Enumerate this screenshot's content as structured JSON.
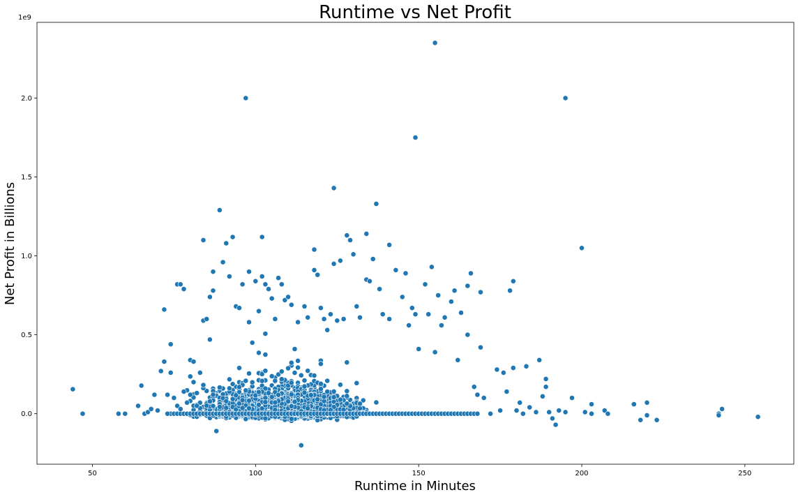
{
  "chart_data": {
    "type": "scatter",
    "title": "Runtime vs Net Profit",
    "xlabel": "Runtime in Minutes",
    "ylabel": "Net Profit in Billions",
    "y_offset_label": "1e9",
    "xlim": [
      33,
      265
    ],
    "ylim": [
      -0.32,
      2.48
    ],
    "xticks": [
      50,
      100,
      150,
      200,
      250
    ],
    "xtick_labels": [
      "50",
      "100",
      "150",
      "200",
      "250"
    ],
    "yticks": [
      0.0,
      0.5,
      1.0,
      1.5,
      2.0
    ],
    "ytick_labels": [
      "0.0",
      "0.5",
      "1.0",
      "1.5",
      "2.0"
    ],
    "grid": false,
    "color": "#1f77b4",
    "points": [
      [
        44,
        0.155
      ],
      [
        47,
        0.0
      ],
      [
        58,
        0.0
      ],
      [
        60,
        0.0
      ],
      [
        64,
        0.05
      ],
      [
        65,
        0.178
      ],
      [
        66,
        0.0
      ],
      [
        67,
        0.01
      ],
      [
        68,
        0.03
      ],
      [
        69,
        0.12
      ],
      [
        70,
        0.02
      ],
      [
        71,
        0.27
      ],
      [
        72,
        0.66
      ],
      [
        72,
        0.33
      ],
      [
        73,
        0.0
      ],
      [
        73,
        0.12
      ],
      [
        74,
        0.26
      ],
      [
        74,
        0.44
      ],
      [
        75,
        0.1
      ],
      [
        76,
        0.82
      ],
      [
        77,
        0.82
      ],
      [
        78,
        0.79
      ],
      [
        76,
        0.05
      ],
      [
        77,
        0.03
      ],
      [
        78,
        0.14
      ],
      [
        79,
        0.07
      ],
      [
        80,
        0.34
      ],
      [
        81,
        0.33
      ],
      [
        80,
        0.12
      ],
      [
        81,
        0.2
      ],
      [
        82,
        0.05
      ],
      [
        83,
        0.26
      ],
      [
        84,
        1.1
      ],
      [
        84,
        0.59
      ],
      [
        85,
        0.6
      ],
      [
        86,
        0.74
      ],
      [
        86,
        0.47
      ],
      [
        87,
        0.78
      ],
      [
        87,
        0.9
      ],
      [
        88,
        -0.11
      ],
      [
        89,
        1.29
      ],
      [
        90,
        0.96
      ],
      [
        91,
        1.08
      ],
      [
        92,
        0.87
      ],
      [
        93,
        1.12
      ],
      [
        94,
        0.68
      ],
      [
        95,
        0.67
      ],
      [
        96,
        0.82
      ],
      [
        97,
        2.0
      ],
      [
        98,
        0.9
      ],
      [
        98,
        0.58
      ],
      [
        99,
        0.45
      ],
      [
        100,
        0.84
      ],
      [
        101,
        0.65
      ],
      [
        102,
        1.12
      ],
      [
        102,
        0.87
      ],
      [
        103,
        0.82
      ],
      [
        104,
        0.79
      ],
      [
        105,
        0.73
      ],
      [
        106,
        0.6
      ],
      [
        107,
        0.86
      ],
      [
        108,
        0.82
      ],
      [
        109,
        0.72
      ],
      [
        110,
        0.74
      ],
      [
        111,
        0.69
      ],
      [
        112,
        0.41
      ],
      [
        113,
        0.58
      ],
      [
        114,
        -0.2
      ],
      [
        115,
        0.68
      ],
      [
        116,
        0.61
      ],
      [
        118,
        0.91
      ],
      [
        118,
        1.04
      ],
      [
        119,
        0.88
      ],
      [
        120,
        0.67
      ],
      [
        121,
        0.6
      ],
      [
        122,
        0.53
      ],
      [
        123,
        0.63
      ],
      [
        124,
        1.43
      ],
      [
        124,
        0.95
      ],
      [
        125,
        0.59
      ],
      [
        126,
        0.97
      ],
      [
        127,
        0.6
      ],
      [
        128,
        1.13
      ],
      [
        129,
        1.1
      ],
      [
        130,
        1.01
      ],
      [
        131,
        0.68
      ],
      [
        132,
        0.61
      ],
      [
        134,
        1.14
      ],
      [
        134,
        0.85
      ],
      [
        135,
        0.84
      ],
      [
        136,
        0.98
      ],
      [
        137,
        1.33
      ],
      [
        138,
        0.79
      ],
      [
        139,
        0.63
      ],
      [
        141,
        1.07
      ],
      [
        141,
        0.6
      ],
      [
        143,
        0.91
      ],
      [
        145,
        0.74
      ],
      [
        146,
        0.89
      ],
      [
        147,
        0.56
      ],
      [
        148,
        0.67
      ],
      [
        149,
        1.75
      ],
      [
        149,
        0.63
      ],
      [
        150,
        0.41
      ],
      [
        152,
        0.82
      ],
      [
        153,
        0.63
      ],
      [
        154,
        0.93
      ],
      [
        155,
        2.35
      ],
      [
        155,
        0.39
      ],
      [
        156,
        0.75
      ],
      [
        157,
        0.56
      ],
      [
        158,
        0.61
      ],
      [
        160,
        0.71
      ],
      [
        161,
        0.78
      ],
      [
        162,
        0.34
      ],
      [
        163,
        0.64
      ],
      [
        165,
        0.81
      ],
      [
        166,
        0.89
      ],
      [
        165,
        0.5
      ],
      [
        167,
        0.17
      ],
      [
        168,
        0.12
      ],
      [
        169,
        0.77
      ],
      [
        169,
        0.42
      ],
      [
        170,
        0.1
      ],
      [
        172,
        0.0
      ],
      [
        174,
        0.28
      ],
      [
        175,
        0.02
      ],
      [
        176,
        0.26
      ],
      [
        177,
        0.14
      ],
      [
        178,
        0.78
      ],
      [
        179,
        0.84
      ],
      [
        179,
        0.29
      ],
      [
        180,
        0.02
      ],
      [
        181,
        0.07
      ],
      [
        182,
        0.0
      ],
      [
        183,
        0.3
      ],
      [
        184,
        0.04
      ],
      [
        186,
        0.01
      ],
      [
        187,
        0.34
      ],
      [
        188,
        0.11
      ],
      [
        189,
        0.17
      ],
      [
        189,
        0.22
      ],
      [
        190,
        0.01
      ],
      [
        191,
        -0.03
      ],
      [
        192,
        -0.07
      ],
      [
        193,
        0.02
      ],
      [
        195,
        2.0
      ],
      [
        195,
        0.01
      ],
      [
        197,
        0.1
      ],
      [
        200,
        1.05
      ],
      [
        201,
        0.01
      ],
      [
        203,
        0.06
      ],
      [
        203,
        0.0
      ],
      [
        207,
        0.02
      ],
      [
        208,
        0.0
      ],
      [
        216,
        0.06
      ],
      [
        218,
        -0.04
      ],
      [
        220,
        0.07
      ],
      [
        220,
        -0.01
      ],
      [
        223,
        -0.04
      ],
      [
        242,
        0.0
      ],
      [
        242,
        -0.01
      ],
      [
        243,
        0.03
      ],
      [
        254,
        -0.02
      ]
    ],
    "dense_region": {
      "x_range": [
        74,
        168
      ],
      "y_core_range": [
        -0.08,
        0.42
      ],
      "peak_x": 108,
      "count": 2600
    }
  }
}
